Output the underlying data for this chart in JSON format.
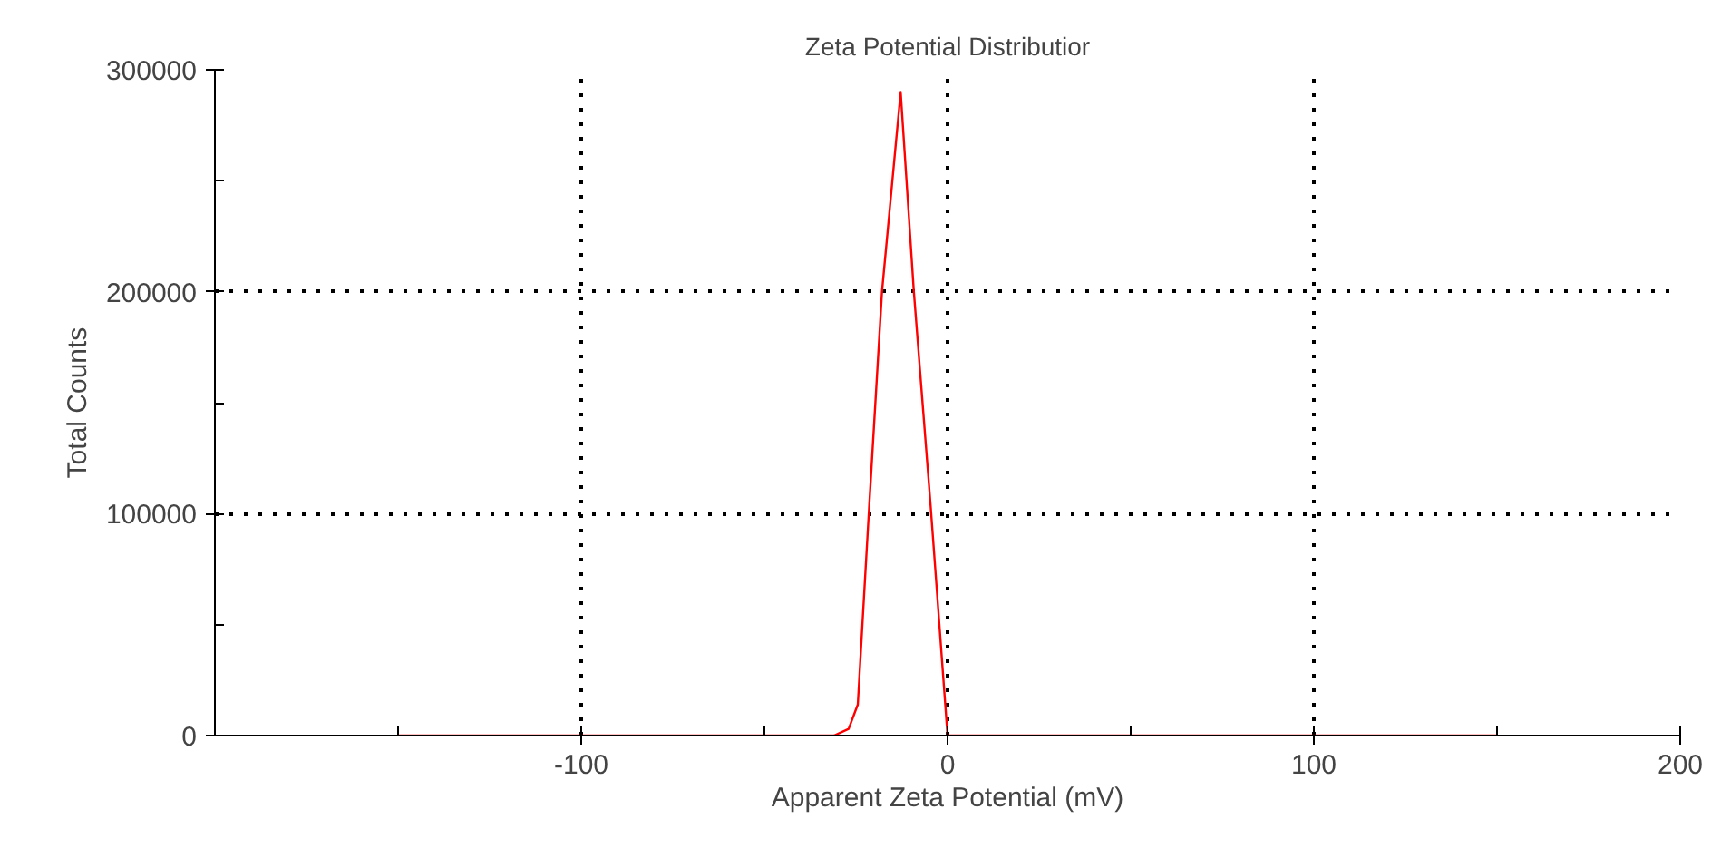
{
  "chart_data": {
    "type": "line",
    "title": "Zeta Potential Distributior",
    "xlabel": "Apparent Zeta Potential (mV)",
    "ylabel": "Total Counts",
    "x": [
      -150,
      -31,
      -27,
      -24.5,
      -21.4,
      -17.9,
      -12.8,
      -9.2,
      -4.6,
      0,
      150
    ],
    "series": [
      {
        "color": "#ff0000",
        "values": [
          0,
          0,
          3000,
          14000,
          103000,
          200000,
          290000,
          200000,
          103000,
          0,
          0
        ]
      }
    ],
    "xlim": [
      -200,
      200
    ],
    "xticks": [
      {
        "value": -150,
        "label": null
      },
      -100,
      {
        "value": -50,
        "label": null
      },
      0,
      {
        "value": 50,
        "label": null
      },
      100,
      {
        "value": 150,
        "label": null
      },
      200
    ],
    "ylim": [
      0,
      300000
    ],
    "yticks": [
      0,
      {
        "value": 50000,
        "label": null
      },
      100000,
      {
        "value": 150000,
        "label": null
      },
      200000,
      {
        "value": 250000,
        "label": null
      },
      300000
    ],
    "grid": true
  }
}
